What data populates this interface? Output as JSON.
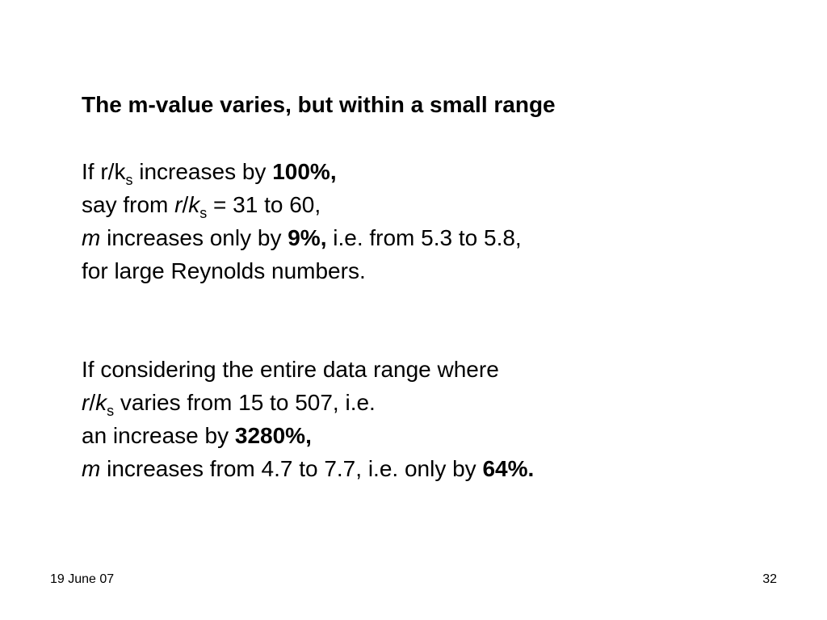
{
  "slide": {
    "title": "The m-value varies, but within a small range",
    "block1": {
      "line1": {
        "pre": "If r/k",
        "sub": "s",
        "post": " increases by ",
        "bold": "100%,"
      },
      "line2": {
        "pre": "say from ",
        "r": "r",
        "slash": "/",
        "k": "k",
        "sub": "s",
        "post": " = 31 to 60,"
      },
      "line3": {
        "m": "m",
        "mid": " increases only by ",
        "bold": "9%,",
        "post": " i.e. from 5.3 to 5.8,"
      },
      "line4": {
        "text": "for large Reynolds numbers."
      }
    },
    "block2": {
      "line1": {
        "text": "If considering the entire data range where"
      },
      "line2": {
        "r": "r",
        "slash": "/",
        "k": "k",
        "sub": "s",
        "post": " varies from 15 to 507, i.e."
      },
      "line3": {
        "pre": "an increase by ",
        "bold": "3280%,"
      },
      "line4": {
        "m": "m",
        "mid": " increases from 4.7 to 7.7, i.e. only by ",
        "bold": "64%."
      }
    }
  },
  "footer": {
    "date": "19 June 07",
    "page_number": "32"
  }
}
